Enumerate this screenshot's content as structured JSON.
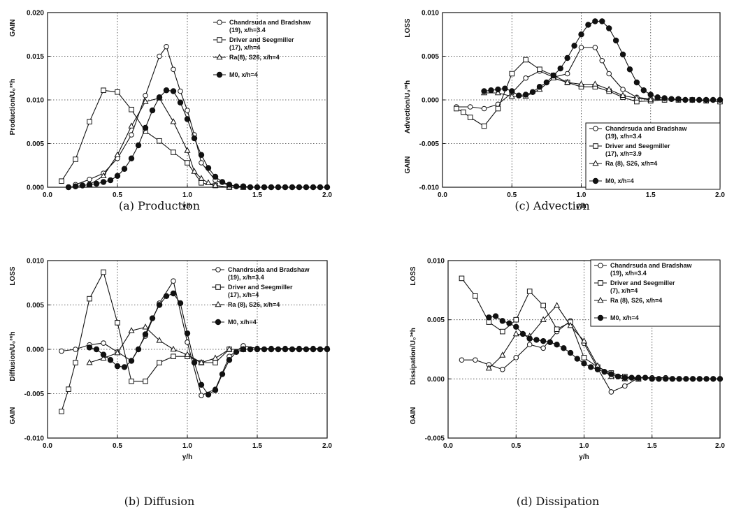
{
  "chart_data": [
    {
      "id": "a",
      "type": "line",
      "caption": "(a)  Production",
      "xlabel": "y/h",
      "ylabel": "Production/U₀³*h",
      "top_side_label": "GAIN",
      "bottom_side_label": "",
      "xlim": [
        0,
        2
      ],
      "ylim": [
        0,
        0.02
      ],
      "xticks": [
        0,
        0.5,
        1,
        1.5,
        2
      ],
      "xtick_labels": [
        "0.0",
        "0.5",
        "1.0",
        "1.5",
        "2.0"
      ],
      "yticks": [
        0,
        0.005,
        0.01,
        0.015,
        0.02
      ],
      "ytick_labels": [
        "0.000",
        "0.005",
        "0.010",
        "0.015",
        "0.020"
      ],
      "legend_position": "top-left",
      "series": [
        {
          "name": "Chandrsuda and Bradshaw (19), x/h=3.4",
          "marker": "circle",
          "x": [
            0.2,
            0.3,
            0.4,
            0.5,
            0.6,
            0.7,
            0.8,
            0.85,
            0.9,
            0.95,
            1.0,
            1.05,
            1.1,
            1.2,
            1.3,
            1.4,
            1.5,
            1.6,
            1.7,
            1.8,
            1.9,
            2.0
          ],
          "y": [
            0.0003,
            0.0009,
            0.0016,
            0.0033,
            0.006,
            0.0105,
            0.015,
            0.0161,
            0.0135,
            0.011,
            0.0088,
            0.006,
            0.0028,
            0.0008,
            0.0002,
            0.0001,
            0.0,
            0.0,
            0.0,
            0.0,
            0.0,
            0.0
          ]
        },
        {
          "name": "Driver and Seegmiller (17), x/h=4",
          "marker": "square",
          "x": [
            0.1,
            0.2,
            0.3,
            0.4,
            0.5,
            0.6,
            0.7,
            0.8,
            0.9,
            1.0,
            1.1,
            1.2,
            1.3,
            1.4
          ],
          "y": [
            0.0007,
            0.0032,
            0.0075,
            0.0111,
            0.0109,
            0.0089,
            0.0064,
            0.0053,
            0.004,
            0.0028,
            0.0005,
            0.0002,
            0.0,
            0.0
          ]
        },
        {
          "name": "Ra(8), S26, x/h=4",
          "marker": "triangle",
          "x": [
            0.3,
            0.4,
            0.5,
            0.6,
            0.7,
            0.8,
            0.9,
            1.0,
            1.05,
            1.1,
            1.15,
            1.2,
            1.3,
            1.4
          ],
          "y": [
            0.0003,
            0.0013,
            0.0037,
            0.007,
            0.0098,
            0.0102,
            0.0075,
            0.0042,
            0.0018,
            0.001,
            0.0005,
            0.0002,
            0.0,
            0.0
          ]
        },
        {
          "name": "M0, x/h=4",
          "marker": "filled-circle",
          "x": [
            0.15,
            0.2,
            0.25,
            0.3,
            0.35,
            0.4,
            0.45,
            0.5,
            0.55,
            0.6,
            0.65,
            0.7,
            0.75,
            0.8,
            0.85,
            0.9,
            0.95,
            1.0,
            1.05,
            1.1,
            1.15,
            1.2,
            1.25,
            1.3,
            1.35,
            1.4,
            1.45,
            1.5,
            1.55,
            1.6,
            1.65,
            1.7,
            1.75,
            1.8,
            1.85,
            1.9,
            1.95,
            2.0
          ],
          "y": [
            0.0,
            0.0001,
            0.0002,
            0.0003,
            0.0004,
            0.0006,
            0.0008,
            0.0013,
            0.0021,
            0.0033,
            0.0048,
            0.0068,
            0.0088,
            0.0103,
            0.0111,
            0.011,
            0.0097,
            0.0078,
            0.0056,
            0.0037,
            0.0022,
            0.0012,
            0.0006,
            0.0003,
            0.0001,
            0.0001,
            0.0,
            0.0,
            0.0,
            0.0,
            0.0,
            0.0,
            0.0,
            0.0,
            0.0,
            0.0,
            0.0,
            0.0
          ]
        }
      ]
    },
    {
      "id": "b",
      "type": "line",
      "caption": "(b)  Diffusion",
      "xlabel": "y/h",
      "ylabel": "Diffusion/U₀³*h",
      "top_side_label": "LOSS",
      "bottom_side_label": "GAIN",
      "xlim": [
        0,
        2
      ],
      "ylim": [
        -0.01,
        0.01
      ],
      "xticks": [
        0,
        0.5,
        1,
        1.5,
        2
      ],
      "xtick_labels": [
        "0.0",
        "0.5",
        "1.0",
        "1.5",
        "2.0"
      ],
      "yticks": [
        -0.01,
        -0.005,
        0,
        0.005,
        0.01
      ],
      "ytick_labels": [
        "-0.010",
        "-0.005",
        "0.000",
        "0.005",
        "0.010"
      ],
      "legend_position": "top-right",
      "series": [
        {
          "name": "Chandrsuda and Bradshaw (19), x/h=3.4",
          "marker": "circle",
          "x": [
            0.1,
            0.2,
            0.3,
            0.4,
            0.5,
            0.6,
            0.7,
            0.8,
            0.9,
            1.0,
            1.1,
            1.2,
            1.3,
            1.4,
            1.5,
            1.6,
            1.7,
            1.8,
            1.9,
            2.0
          ],
          "y": [
            -0.0002,
            0.0,
            0.0005,
            0.0007,
            -0.0003,
            -0.0013,
            0.0015,
            0.0052,
            0.0077,
            0.0008,
            -0.0052,
            -0.0045,
            -0.0008,
            0.0004,
            0.0001,
            0.0001,
            0.0001,
            0.0001,
            0.0001,
            0.0001
          ]
        },
        {
          "name": "Driver and Seegmiller (17), x/h=4",
          "marker": "square",
          "x": [
            0.1,
            0.15,
            0.2,
            0.3,
            0.4,
            0.5,
            0.6,
            0.7,
            0.8,
            0.9,
            1.0,
            1.1,
            1.2,
            1.3,
            1.4
          ],
          "y": [
            -0.007,
            -0.0045,
            -0.0015,
            0.0057,
            0.0087,
            0.003,
            -0.0036,
            -0.0036,
            -0.0015,
            -0.0008,
            -0.0008,
            -0.0015,
            -0.0015,
            0.0,
            0.0
          ]
        },
        {
          "name": "Ra (8), S26, x/h=4",
          "marker": "triangle",
          "x": [
            0.3,
            0.4,
            0.5,
            0.6,
            0.7,
            0.8,
            0.9,
            1.0,
            1.1,
            1.2,
            1.3,
            1.4
          ],
          "y": [
            -0.0015,
            -0.001,
            -0.0004,
            0.0021,
            0.0025,
            0.001,
            0.0,
            -0.0006,
            -0.0015,
            -0.001,
            0.0,
            0.0
          ]
        },
        {
          "name": "M0, x/h=4",
          "marker": "filled-circle",
          "x": [
            0.3,
            0.35,
            0.4,
            0.45,
            0.5,
            0.55,
            0.6,
            0.65,
            0.7,
            0.75,
            0.8,
            0.85,
            0.9,
            0.95,
            1.0,
            1.05,
            1.1,
            1.15,
            1.2,
            1.25,
            1.3,
            1.35,
            1.4,
            1.45,
            1.5,
            1.55,
            1.6,
            1.65,
            1.7,
            1.75,
            1.8,
            1.85,
            1.9,
            1.95,
            2.0
          ],
          "y": [
            0.0002,
            0.0,
            -0.0006,
            -0.0012,
            -0.0019,
            -0.002,
            -0.0013,
            0.0,
            0.0017,
            0.0035,
            0.005,
            0.006,
            0.0063,
            0.0052,
            0.0018,
            -0.0015,
            -0.004,
            -0.0051,
            -0.0046,
            -0.0028,
            -0.0012,
            -0.0003,
            0.0,
            0.0,
            0.0,
            0.0,
            0.0,
            0.0,
            0.0,
            0.0,
            0.0,
            0.0,
            0.0,
            0.0,
            0.0
          ]
        }
      ]
    },
    {
      "id": "c",
      "type": "line",
      "caption": "(c)  Advection",
      "xlabel": "y/h",
      "ylabel": "Advection/U₀³*h",
      "top_side_label": "LOSS",
      "bottom_side_label": "GAIN",
      "xlim": [
        0,
        2
      ],
      "ylim": [
        -0.01,
        0.01
      ],
      "xticks": [
        0,
        0.5,
        1,
        1.5,
        2
      ],
      "xtick_labels": [
        "0.0",
        "0.5",
        "1.0",
        "1.5",
        "2.0"
      ],
      "yticks": [
        -0.01,
        -0.005,
        0,
        0.005,
        0.01
      ],
      "ytick_labels": [
        "-0.010",
        "-0.005",
        "0.000",
        "0.005",
        "0.010"
      ],
      "legend_position": "bottom-right",
      "series": [
        {
          "name": "Chandrsuda and Bradshaw (19), x/h=3.4",
          "marker": "circle",
          "x": [
            0.1,
            0.2,
            0.3,
            0.4,
            0.5,
            0.6,
            0.7,
            0.8,
            0.9,
            1.0,
            1.1,
            1.15,
            1.2,
            1.3,
            1.4,
            1.5,
            1.6,
            1.7,
            1.8,
            1.9,
            2.0
          ],
          "y": [
            -0.0008,
            -0.0008,
            -0.001,
            -0.0005,
            0.0008,
            0.0025,
            0.0033,
            0.0026,
            0.003,
            0.006,
            0.006,
            0.0045,
            0.003,
            0.0012,
            0.0003,
            0.0001,
            0.0,
            0.0,
            0.0,
            0.0,
            0.0
          ]
        },
        {
          "name": "Driver and Seegmiller (17), x/h=3.9",
          "marker": "square",
          "x": [
            0.1,
            0.15,
            0.2,
            0.3,
            0.4,
            0.5,
            0.6,
            0.7,
            0.8,
            0.9,
            1.0,
            1.1,
            1.2,
            1.3,
            1.4,
            1.5,
            1.6,
            1.7,
            1.8,
            1.9,
            2.0
          ],
          "y": [
            -0.001,
            -0.0014,
            -0.002,
            -0.003,
            -0.001,
            0.003,
            0.0046,
            0.0035,
            0.0028,
            0.002,
            0.0015,
            0.0015,
            0.001,
            0.0003,
            -0.0002,
            -0.0001,
            0.0,
            0.0,
            0.0,
            -0.0001,
            -0.0002
          ]
        },
        {
          "name": "Ra (8), S26, x/h=4",
          "marker": "triangle",
          "x": [
            0.3,
            0.4,
            0.5,
            0.6,
            0.7,
            0.8,
            0.9,
            1.0,
            1.1,
            1.2,
            1.3,
            1.4,
            1.5
          ],
          "y": [
            0.0008,
            0.0008,
            0.0004,
            0.0004,
            0.0012,
            0.0025,
            0.002,
            0.0018,
            0.0018,
            0.0012,
            0.0005,
            0.0002,
            0.0
          ]
        },
        {
          "name": "M0, x/h=4",
          "marker": "filled-circle",
          "x": [
            0.3,
            0.35,
            0.4,
            0.45,
            0.5,
            0.55,
            0.6,
            0.65,
            0.7,
            0.75,
            0.8,
            0.85,
            0.9,
            0.95,
            1.0,
            1.05,
            1.1,
            1.15,
            1.2,
            1.25,
            1.3,
            1.35,
            1.4,
            1.45,
            1.5,
            1.55,
            1.6,
            1.65,
            1.7,
            1.75,
            1.8,
            1.85,
            1.9,
            1.95,
            2.0
          ],
          "y": [
            0.001,
            0.0011,
            0.0012,
            0.0013,
            0.001,
            0.0005,
            0.0006,
            0.0009,
            0.0015,
            0.002,
            0.0028,
            0.0036,
            0.0048,
            0.0062,
            0.0075,
            0.0086,
            0.009,
            0.009,
            0.0082,
            0.0068,
            0.0052,
            0.0035,
            0.002,
            0.0011,
            0.0006,
            0.0003,
            0.0002,
            0.0001,
            0.0001,
            0.0,
            0.0,
            0.0,
            0.0,
            0.0,
            0.0
          ]
        }
      ]
    },
    {
      "id": "d",
      "type": "line",
      "caption": "(d)  Dissipation",
      "xlabel": "y/h",
      "ylabel": "Dissipation/U₀³*h",
      "top_side_label": "LOSS",
      "bottom_side_label": "GAIN",
      "xlim": [
        0,
        2
      ],
      "ylim": [
        -0.005,
        0.01
      ],
      "xticks": [
        0,
        0.5,
        1,
        1.5,
        2
      ],
      "xtick_labels": [
        "0.0",
        "0.5",
        "1.0",
        "1.5",
        "2.0"
      ],
      "yticks": [
        -0.005,
        0,
        0.005,
        0.01
      ],
      "ytick_labels": [
        "-0.005",
        "0.000",
        "0.005",
        "0.010"
      ],
      "legend_position": "top-right",
      "series": [
        {
          "name": "Chandrsuda and Bradshaw (19), x/h=3.4",
          "marker": "circle",
          "x": [
            0.1,
            0.2,
            0.3,
            0.4,
            0.5,
            0.6,
            0.7,
            0.8,
            0.9,
            1.0,
            1.1,
            1.2,
            1.3,
            1.4,
            1.5,
            1.6,
            1.7,
            1.8,
            1.9,
            2.0
          ],
          "y": [
            0.0016,
            0.0016,
            0.0012,
            0.0008,
            0.0018,
            0.0029,
            0.0026,
            0.004,
            0.0049,
            0.003,
            0.0009,
            -0.0011,
            -0.0006,
            0.0001,
            0.0001,
            0.0001,
            0.0,
            0.0,
            0.0,
            0.0
          ]
        },
        {
          "name": "Driver and Seegmiller (7), x/h=4",
          "marker": "square",
          "x": [
            0.1,
            0.2,
            0.3,
            0.4,
            0.5,
            0.6,
            0.7,
            0.8,
            0.9,
            1.0,
            1.1,
            1.2,
            1.3,
            1.4
          ],
          "y": [
            0.0085,
            0.007,
            0.0048,
            0.004,
            0.005,
            0.0074,
            0.0062,
            0.0042,
            0.0048,
            0.0018,
            0.001,
            0.0005,
            0.0002,
            0.0
          ]
        },
        {
          "name": "Ra (8), S26, x/h=4",
          "marker": "triangle",
          "x": [
            0.3,
            0.4,
            0.5,
            0.6,
            0.7,
            0.8,
            0.9,
            1.0,
            1.1,
            1.2,
            1.3,
            1.4
          ],
          "y": [
            0.0009,
            0.002,
            0.0038,
            0.0036,
            0.005,
            0.0062,
            0.0045,
            0.0032,
            0.0011,
            0.0002,
            0.0,
            0.0
          ]
        },
        {
          "name": "M0, x/h=4",
          "marker": "filled-circle",
          "x": [
            0.3,
            0.35,
            0.4,
            0.45,
            0.5,
            0.55,
            0.6,
            0.65,
            0.7,
            0.75,
            0.8,
            0.85,
            0.9,
            0.95,
            1.0,
            1.05,
            1.1,
            1.15,
            1.2,
            1.25,
            1.3,
            1.35,
            1.4,
            1.45,
            1.5,
            1.55,
            1.6,
            1.65,
            1.7,
            1.75,
            1.8,
            1.85,
            1.9,
            1.95,
            2.0
          ],
          "y": [
            0.0052,
            0.0053,
            0.0049,
            0.0047,
            0.0044,
            0.0038,
            0.0034,
            0.0033,
            0.0032,
            0.0031,
            0.0029,
            0.0026,
            0.0022,
            0.0017,
            0.0013,
            0.001,
            0.0008,
            0.0006,
            0.0004,
            0.0002,
            0.0001,
            0.0001,
            0.0001,
            0.0001,
            0.0,
            0.0,
            0.0,
            0.0,
            0.0,
            0.0,
            0.0,
            0.0,
            0.0,
            0.0,
            0.0
          ]
        }
      ]
    }
  ]
}
